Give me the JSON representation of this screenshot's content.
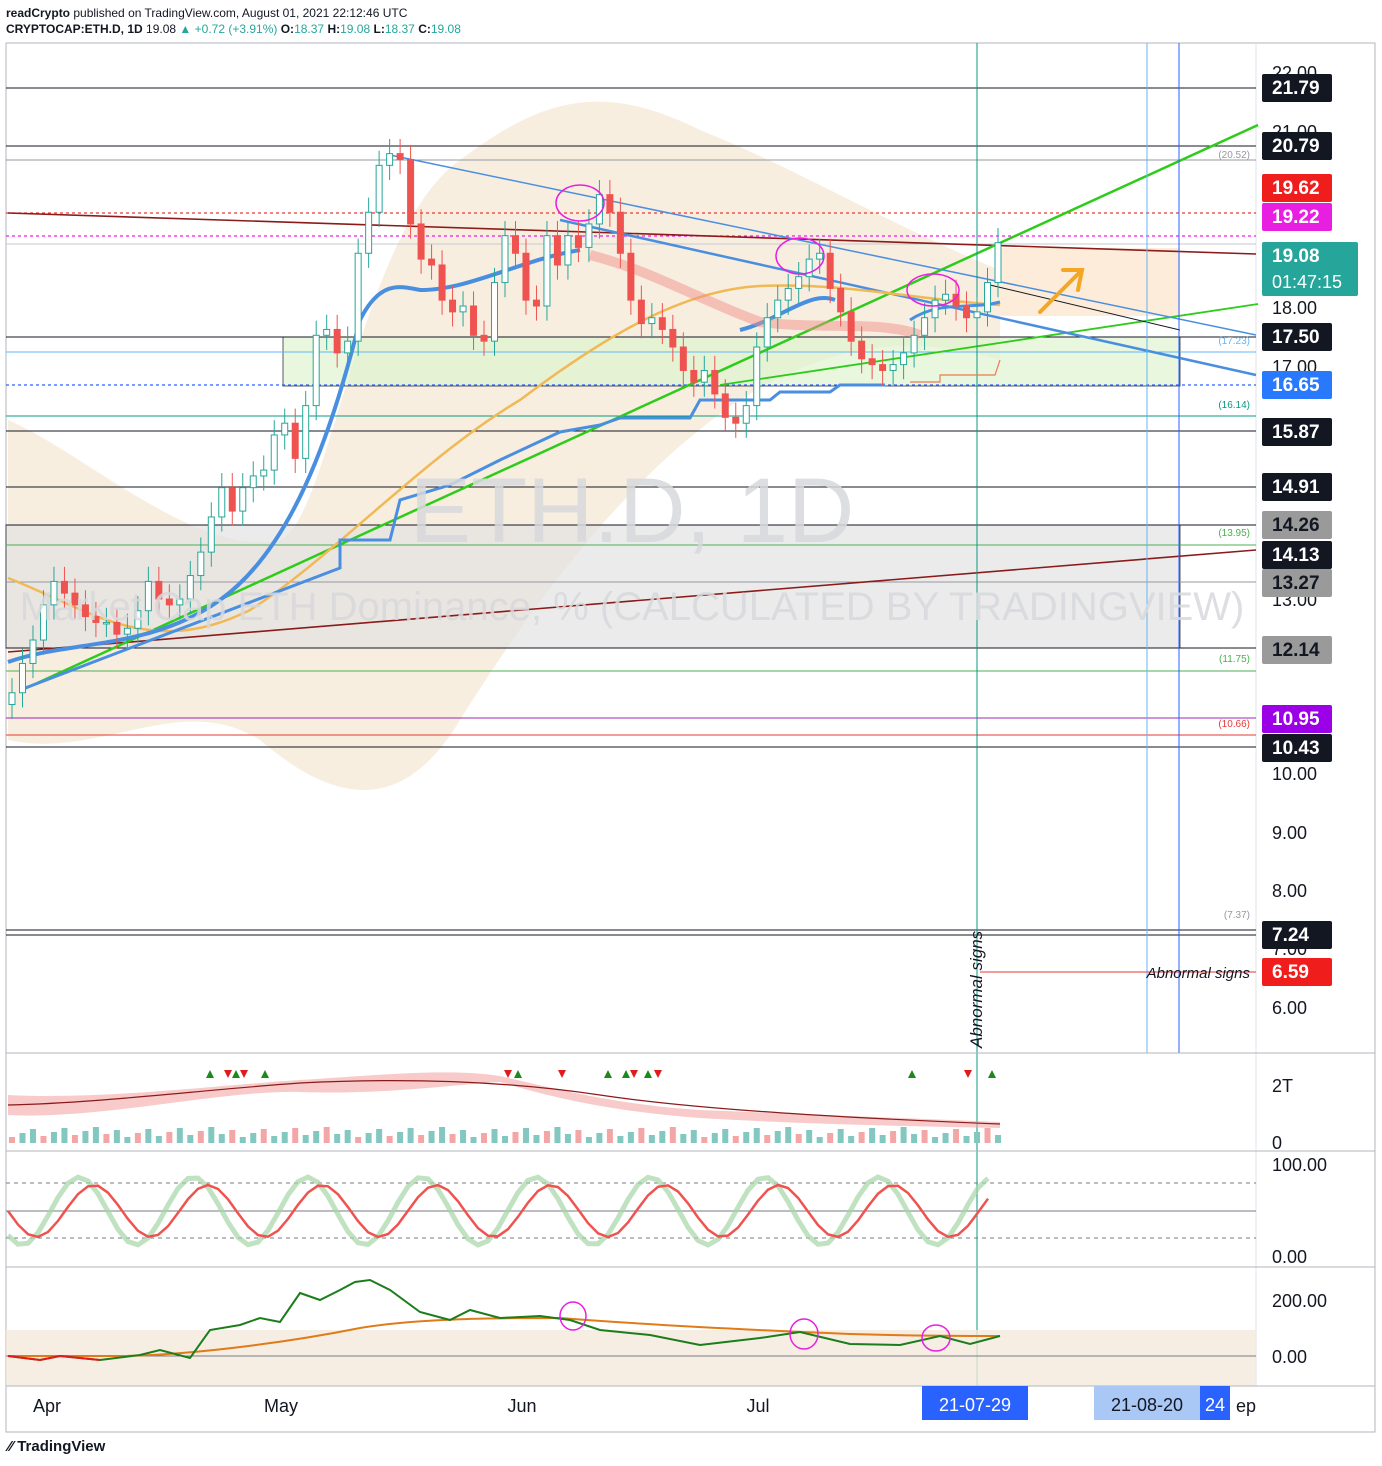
{
  "header": {
    "publisher": "readCrypto",
    "published_text": "published on TradingView.com, August 01, 2021 22:12:46 UTC",
    "symbol": "CRYPTOCAP:ETH.D, 1D",
    "last": "19.08",
    "change": "+0.72 (+3.91%)",
    "open_label": "O:",
    "open": "18.37",
    "high_label": "H:",
    "high": "19.08",
    "low_label": "L:",
    "low": "18.37",
    "close_label": "C:",
    "close": "19.08"
  },
  "watermark": {
    "title": "ETH.D, 1D",
    "subtitle": "Market Cap ETH Dominance, % (CALCULATED BY TRADINGVIEW)"
  },
  "footer": {
    "brand": "TradingView"
  },
  "colors": {
    "up": "#26a69a",
    "down": "#ef5350",
    "green_line": "#2ecc1a",
    "blue_line": "#4a8fdf",
    "orange": "#f0b955",
    "brown": "#8b1a1a",
    "magenta": "#e81fe1",
    "red_badge": "#f01d1d"
  },
  "chart_data": {
    "type": "candlestick",
    "y_axis_ticks": [
      "22.00",
      "21.00",
      "18.00",
      "17.00",
      "13.00",
      "10.00",
      "9.00",
      "8.00",
      "7.00",
      "6.00"
    ],
    "x_axis_ticks": [
      "Apr",
      "May",
      "Jun",
      "Jul",
      "ep"
    ],
    "date_markers": [
      "21-07-29",
      "21-08-20",
      "24"
    ],
    "level_badges": [
      {
        "value": "21.79",
        "style": "black"
      },
      {
        "value": "20.79",
        "style": "black"
      },
      {
        "value": "19.62",
        "style": "red"
      },
      {
        "value": "19.22",
        "style": "magenta"
      },
      {
        "value": "19.08",
        "style": "teal",
        "sub": "01:47:15"
      },
      {
        "value": "17.50",
        "style": "black"
      },
      {
        "value": "16.65",
        "style": "blue"
      },
      {
        "value": "15.87",
        "style": "black"
      },
      {
        "value": "14.91",
        "style": "black"
      },
      {
        "value": "14.26",
        "style": "gray"
      },
      {
        "value": "14.13",
        "style": "black"
      },
      {
        "value": "13.27",
        "style": "gray"
      },
      {
        "value": "12.14",
        "style": "gray"
      },
      {
        "value": "10.95",
        "style": "purple"
      },
      {
        "value": "10.43",
        "style": "black"
      },
      {
        "value": "7.24",
        "style": "black"
      },
      {
        "value": "6.59",
        "style": "red"
      }
    ],
    "small_labels": [
      "(20.52)",
      "(17.23)",
      "(16.14)",
      "(13.95)",
      "(11.75)",
      "(10.66)",
      "(7.37)"
    ],
    "annotations": [
      "Abnormal signs",
      "Abnormal signs"
    ],
    "closes": [
      11.4,
      11.9,
      12.3,
      12.9,
      13.3,
      13.1,
      12.9,
      12.7,
      12.6,
      12.6,
      12.4,
      12.5,
      12.8,
      13.3,
      13.0,
      12.9,
      13.0,
      13.4,
      13.8,
      14.4,
      14.9,
      14.5,
      14.9,
      15.1,
      15.2,
      15.8,
      16.0,
      15.4,
      16.3,
      17.5,
      17.6,
      17.2,
      17.4,
      18.9,
      19.6,
      20.4,
      20.6,
      20.5,
      19.4,
      18.8,
      18.7,
      18.1,
      17.9,
      18.0,
      17.5,
      17.4,
      18.4,
      19.2,
      18.9,
      18.1,
      18.0,
      19.2,
      18.7,
      19.2,
      19.0,
      19.4,
      19.9,
      19.6,
      18.9,
      18.1,
      17.7,
      17.8,
      17.6,
      17.3,
      16.9,
      16.7,
      16.9,
      16.5,
      16.1,
      16.0,
      16.3,
      17.3,
      17.8,
      18.1,
      18.3,
      18.5,
      18.8,
      18.9,
      18.3,
      17.9,
      17.4,
      17.1,
      17.0,
      16.9,
      17.0,
      17.2,
      17.5,
      17.8,
      18.1,
      18.2,
      18.0,
      17.8,
      17.9,
      18.4,
      19.08
    ],
    "indicator_ticks": {
      "volume": [
        "2T",
        "0"
      ],
      "stoch": [
        "100.00",
        "0.00"
      ],
      "osc": [
        "200.00",
        "0.00"
      ]
    }
  }
}
